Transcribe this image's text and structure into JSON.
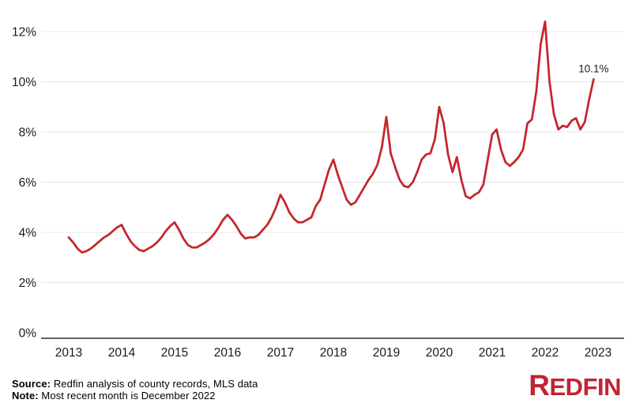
{
  "chart_data": {
    "type": "line",
    "title": "",
    "frequency": "monthly",
    "start_month": "2013-01",
    "end_month": "2022-12",
    "x_tick_labels": [
      "2013",
      "2014",
      "2015",
      "2016",
      "2017",
      "2018",
      "2019",
      "2020",
      "2021",
      "2022",
      "2023"
    ],
    "y_tick_values": [
      0,
      2,
      4,
      6,
      8,
      10,
      12
    ],
    "y_tick_labels": [
      "0%",
      "2%",
      "4%",
      "6%",
      "8%",
      "10%",
      "12%"
    ],
    "ylim": [
      0,
      12.8
    ],
    "grid": "horizontal",
    "legend": "none",
    "line_color": "#c4262d",
    "grid_color": "#e7e7e7",
    "axis_color": "#2e2e2e",
    "tick_text_color": "#1a1a1a",
    "series": [
      {
        "name": "share_percent",
        "values": [
          3.8,
          3.6,
          3.35,
          3.2,
          3.25,
          3.35,
          3.5,
          3.65,
          3.8,
          3.9,
          4.05,
          4.2,
          4.3,
          3.95,
          3.65,
          3.45,
          3.3,
          3.25,
          3.35,
          3.45,
          3.6,
          3.8,
          4.05,
          4.25,
          4.4,
          4.1,
          3.75,
          3.5,
          3.4,
          3.4,
          3.5,
          3.6,
          3.75,
          3.95,
          4.2,
          4.5,
          4.7,
          4.5,
          4.25,
          3.95,
          3.76,
          3.8,
          3.8,
          3.9,
          4.1,
          4.3,
          4.6,
          5.0,
          5.5,
          5.2,
          4.8,
          4.55,
          4.4,
          4.4,
          4.5,
          4.6,
          5.05,
          5.3,
          5.9,
          6.5,
          6.9,
          6.3,
          5.8,
          5.3,
          5.1,
          5.2,
          5.5,
          5.8,
          6.1,
          6.35,
          6.7,
          7.4,
          8.6,
          7.15,
          6.6,
          6.1,
          5.85,
          5.8,
          6.0,
          6.4,
          6.9,
          7.1,
          7.15,
          7.7,
          9.0,
          8.35,
          7.1,
          6.4,
          7.0,
          6.1,
          5.45,
          5.35,
          5.5,
          5.6,
          5.9,
          6.9,
          7.9,
          8.1,
          7.3,
          6.8,
          6.65,
          6.8,
          7.0,
          7.3,
          8.35,
          8.5,
          9.6,
          11.5,
          12.4,
          10.0,
          8.7,
          8.1,
          8.25,
          8.2,
          8.45,
          8.55,
          8.1,
          8.4,
          9.3,
          10.1
        ]
      }
    ],
    "annotation": {
      "text": "10.1%",
      "at": "2022-12",
      "value": 10.1
    }
  },
  "footer": {
    "source_label": "Source:",
    "source_text": " Redfin analysis of county records, MLS data",
    "note_label": "Note:",
    "note_text": " Most recent month is December 2022"
  },
  "logo": {
    "first_letter": "R",
    "rest": "EDFIN",
    "color": "#c22433"
  }
}
